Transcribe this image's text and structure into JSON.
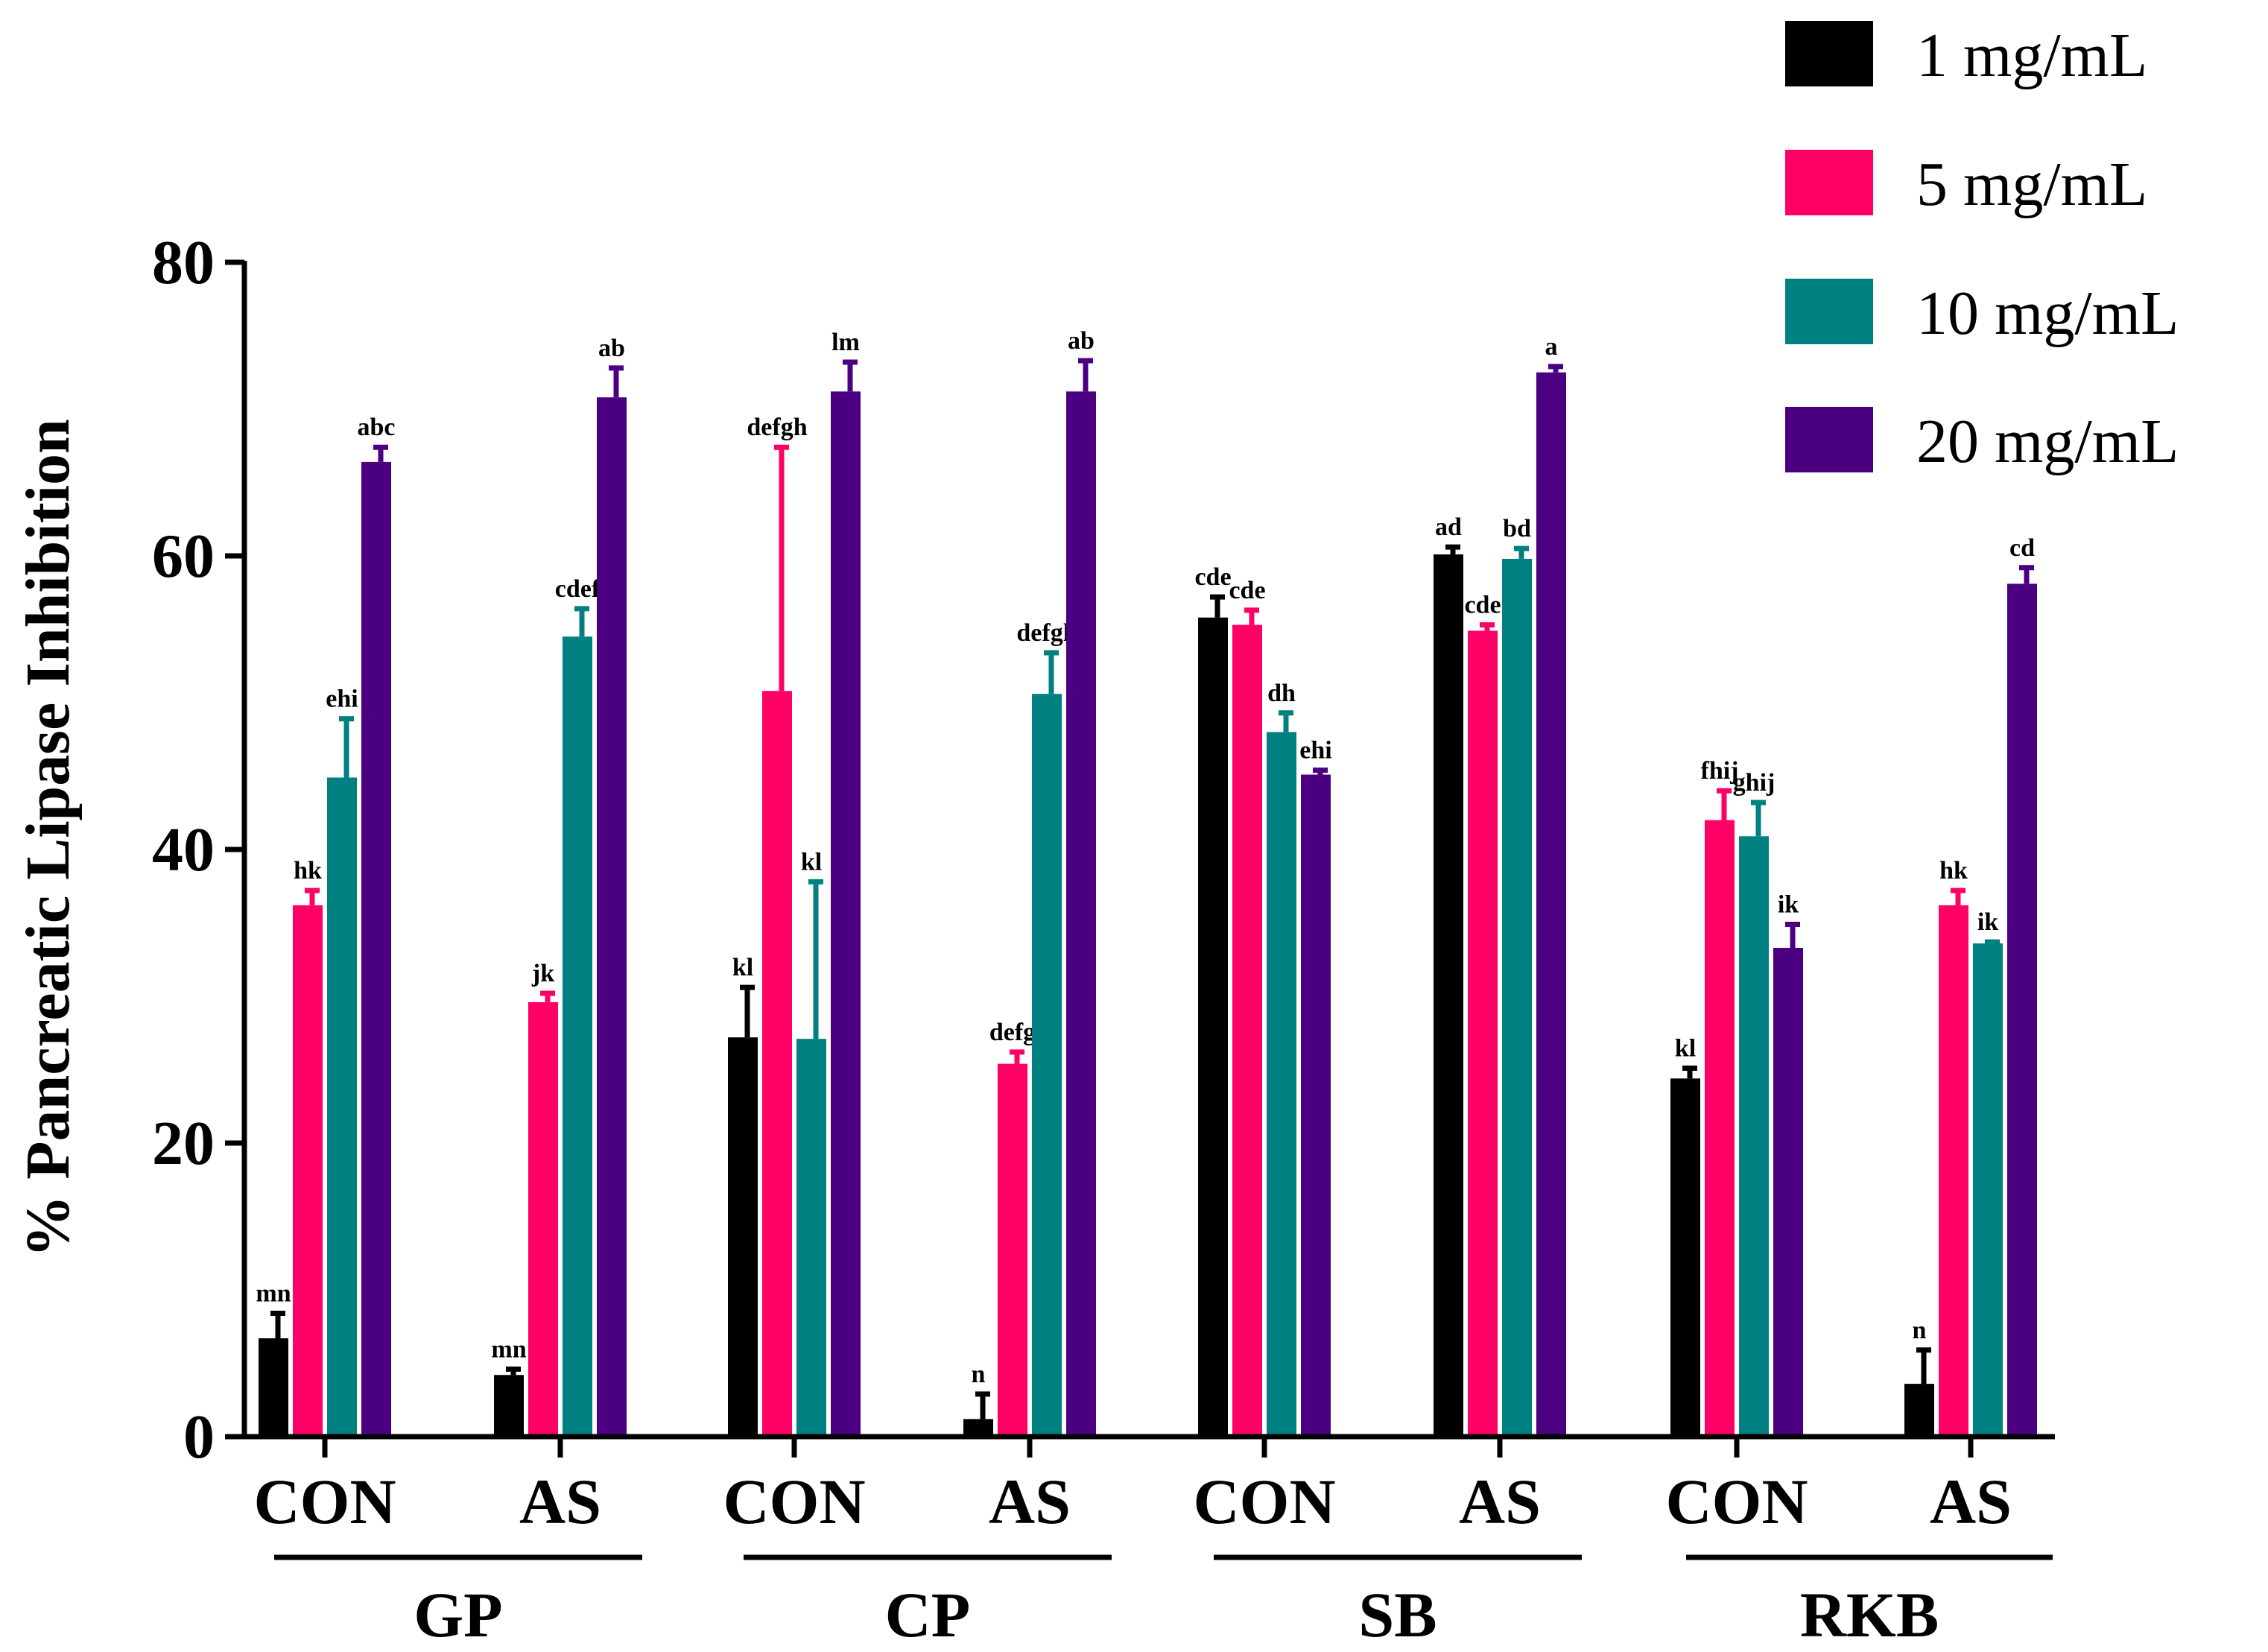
{
  "chart_data": {
    "type": "bar",
    "ylabel": "% Pancreatic Lipase Inhibition",
    "xlabel": "",
    "ylim": [
      0,
      80
    ],
    "yticks": [
      "0",
      "20",
      "40",
      "60",
      "80"
    ],
    "grid": false,
    "legend_position": "top-right",
    "categories": [
      "CON",
      "AS",
      "CON",
      "AS",
      "CON",
      "AS",
      "CON",
      "AS"
    ],
    "groups": [
      {
        "label": "GP",
        "span": [
          0,
          1
        ]
      },
      {
        "label": "CP",
        "span": [
          2,
          3
        ]
      },
      {
        "label": "SB",
        "span": [
          4,
          5
        ]
      },
      {
        "label": "RKB",
        "span": [
          6,
          7
        ]
      }
    ],
    "series": [
      {
        "name": "1 mg/mL",
        "color": "#000000",
        "values": [
          6.7,
          4.2,
          27.2,
          1.2,
          55.8,
          60.1,
          24.4,
          3.6
        ],
        "errors": [
          1.7,
          0.4,
          3.4,
          1.7,
          1.4,
          0.5,
          0.7,
          2.3
        ],
        "labels": [
          "mn",
          "mn",
          "kl",
          "n",
          "cde",
          "ad",
          "kl",
          "n"
        ]
      },
      {
        "name": "5 mg/mL",
        "color": "#ff0066",
        "values": [
          36.2,
          29.6,
          50.8,
          25.4,
          55.3,
          54.9,
          42.0,
          36.2
        ],
        "errors": [
          1.0,
          0.6,
          16.6,
          0.8,
          1.0,
          0.4,
          2.0,
          1.0
        ],
        "labels": [
          "hk",
          "jk",
          "defgh",
          "defg",
          "cde",
          "cde",
          "fhij",
          "hk"
        ]
      },
      {
        "name": "10 mg/mL",
        "color": "#008080",
        "values": [
          44.9,
          54.5,
          27.1,
          50.6,
          48.0,
          59.8,
          40.9,
          33.6
        ],
        "errors": [
          4.0,
          1.9,
          10.7,
          2.8,
          1.3,
          0.7,
          2.3,
          0.1
        ],
        "labels": [
          "ehi",
          "cdef",
          "kl",
          "defgh",
          "dh",
          "bd",
          "ghij",
          "ik"
        ]
      },
      {
        "name": "20 mg/mL",
        "color": "#4b0082",
        "values": [
          66.4,
          70.8,
          71.2,
          71.2,
          45.1,
          72.5,
          33.3,
          58.1
        ],
        "errors": [
          1.0,
          2.0,
          2.0,
          2.1,
          0.3,
          0.4,
          1.6,
          1.1
        ],
        "labels": [
          "abc",
          "ab",
          "lm",
          "ab",
          "ehi",
          "a",
          "ik",
          "cd"
        ]
      }
    ]
  }
}
